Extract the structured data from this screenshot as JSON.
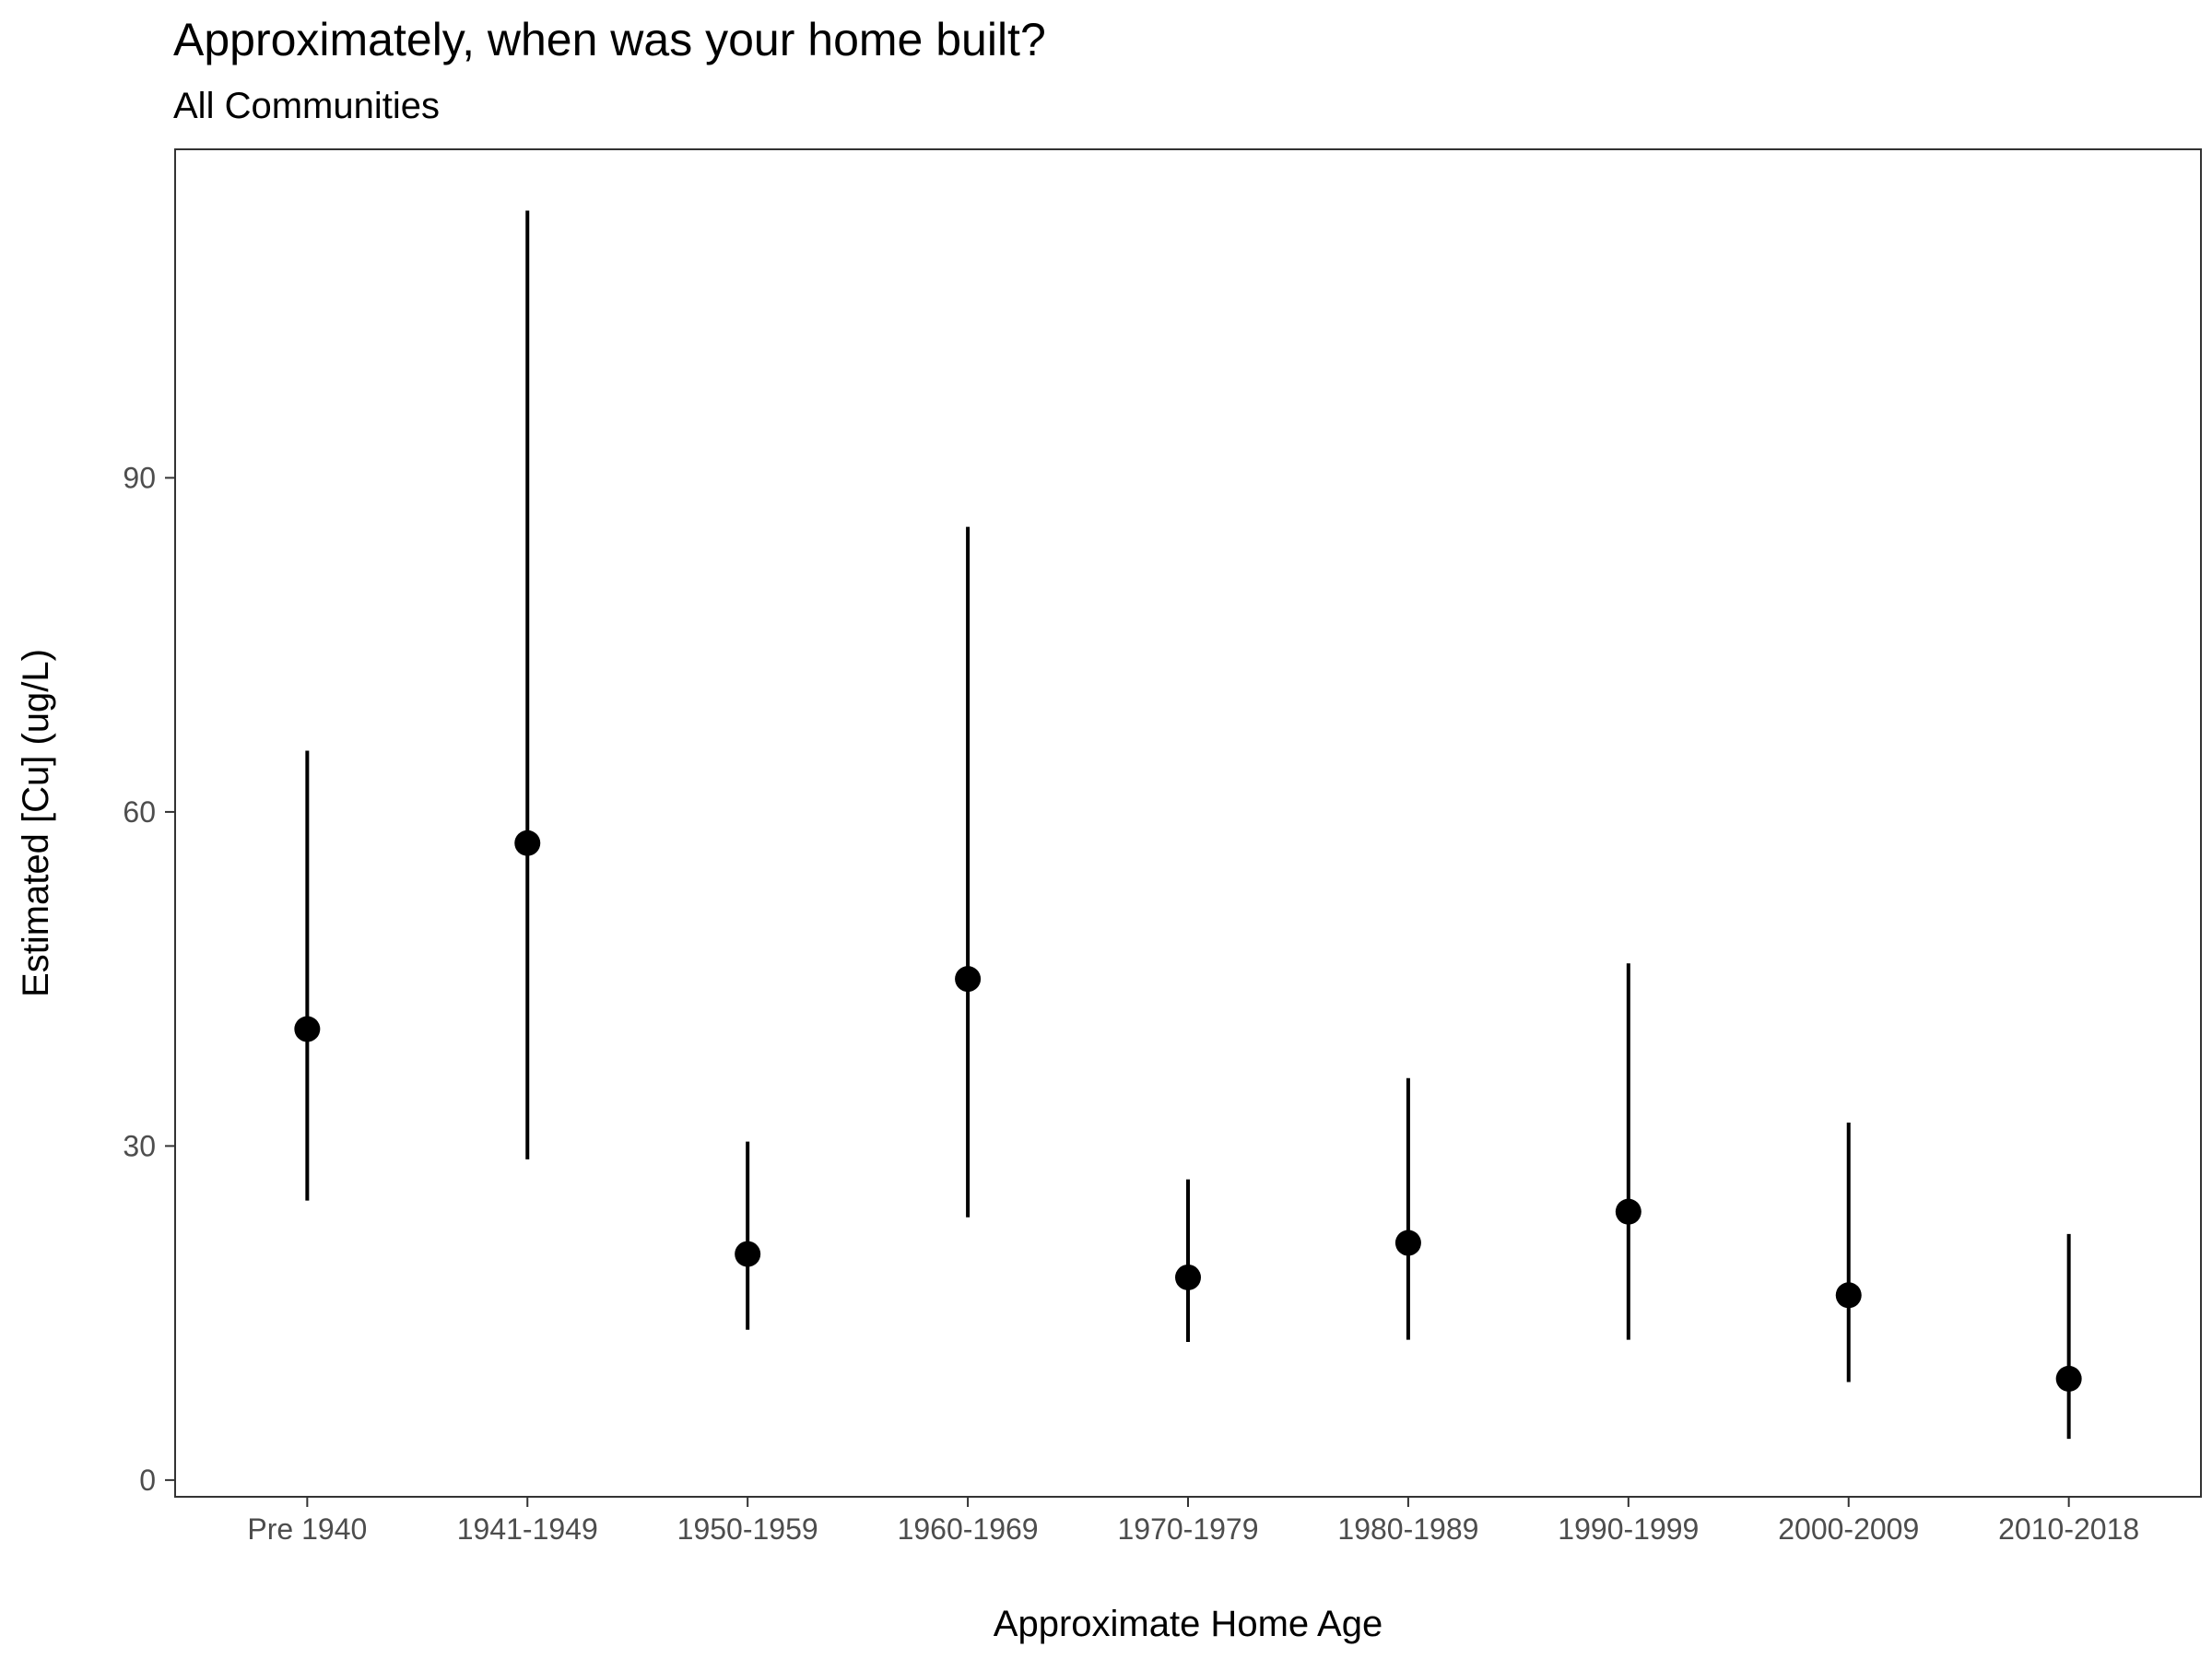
{
  "chart_data": {
    "type": "scatter",
    "title": "Approximately, when was your home built?",
    "subtitle": "All Communities",
    "xlabel": "Approximate Home Age",
    "ylabel": "Estimated [Cu] (ug/L)",
    "categories": [
      "Pre 1940",
      "1941-1949",
      "1950-1959",
      "1960-1969",
      "1970-1979",
      "1980-1989",
      "1990-1999",
      "2000-2009",
      "2010-2018"
    ],
    "series": [
      {
        "values": [
          40.5,
          57.2,
          20.3,
          45.0,
          18.2,
          21.3,
          24.1,
          16.6,
          9.1
        ],
        "lower": [
          25.1,
          28.8,
          13.5,
          23.6,
          12.4,
          12.6,
          12.6,
          8.8,
          3.7
        ],
        "upper": [
          65.5,
          114.0,
          30.4,
          85.6,
          27.0,
          36.1,
          46.4,
          32.1,
          22.1
        ]
      }
    ],
    "ylim": [
      -1.5,
      119.5
    ],
    "yticks": [
      0,
      30,
      60,
      90
    ],
    "grid": false,
    "legend": "none",
    "colors": {
      "point": "#000000",
      "errorbar": "#000000",
      "panel_border": "#333333",
      "axis_tick": "#333333",
      "tick_label": "#4d4d4d"
    }
  }
}
